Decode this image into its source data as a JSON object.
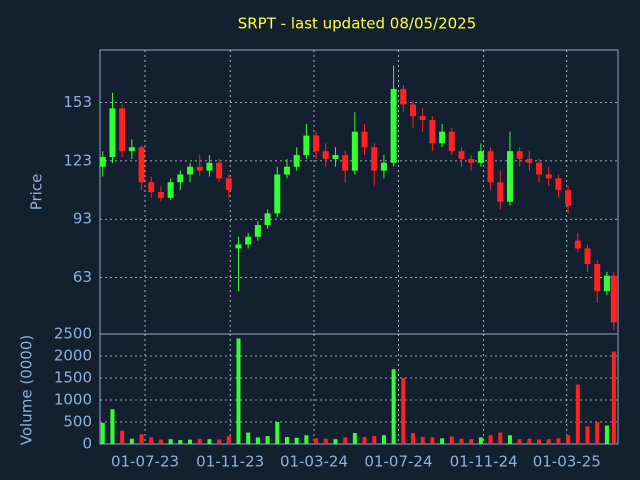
{
  "chart_data": {
    "type": "candlestick",
    "title": "SRPT - last updated 08/05/2025",
    "ylabel": "Price",
    "volume_label": "Volume (0000)",
    "up_color": "#33ff33",
    "down_color": "#ff2222",
    "grid": true,
    "xlim": [
      "2023-04-27",
      "2025-05-14"
    ],
    "xticks": [
      {
        "value": "2023-07-01",
        "label": "01-07-23"
      },
      {
        "value": "2023-11-01",
        "label": "01-11-23"
      },
      {
        "value": "2024-03-01",
        "label": "01-03-24"
      },
      {
        "value": "2024-07-01",
        "label": "01-07-24"
      },
      {
        "value": "2024-11-01",
        "label": "01-11-24"
      },
      {
        "value": "2025-03-01",
        "label": "01-03-25"
      }
    ],
    "ylim": [
      34,
      180
    ],
    "yticks": [
      63,
      93,
      123,
      153
    ],
    "volume_ylim": [
      0,
      2500
    ],
    "volume_yticks": [
      0,
      500,
      1000,
      1500,
      2000,
      2500
    ],
    "x": [
      "2023-05-01",
      "2023-05-15",
      "2023-05-29",
      "2023-06-12",
      "2023-06-26",
      "2023-07-10",
      "2023-07-24",
      "2023-08-07",
      "2023-08-21",
      "2023-09-04",
      "2023-09-18",
      "2023-10-02",
      "2023-10-16",
      "2023-10-30",
      "2023-11-13",
      "2023-11-27",
      "2023-12-11",
      "2023-12-25",
      "2024-01-08",
      "2024-01-22",
      "2024-02-05",
      "2024-02-19",
      "2024-03-04",
      "2024-03-18",
      "2024-04-01",
      "2024-04-15",
      "2024-04-29",
      "2024-05-13",
      "2024-05-27",
      "2024-06-10",
      "2024-06-24",
      "2024-07-08",
      "2024-07-22",
      "2024-08-05",
      "2024-08-19",
      "2024-09-02",
      "2024-09-16",
      "2024-09-30",
      "2024-10-14",
      "2024-10-28",
      "2024-11-11",
      "2024-11-25",
      "2024-12-09",
      "2024-12-23",
      "2025-01-06",
      "2025-01-20",
      "2025-02-03",
      "2025-02-17",
      "2025-03-03",
      "2025-03-17",
      "2025-03-31",
      "2025-04-14",
      "2025-04-28",
      "2025-05-08"
    ],
    "open": [
      120,
      125,
      150,
      128,
      130,
      112,
      107,
      104,
      112,
      116,
      120,
      118,
      122,
      114,
      78,
      80,
      84,
      90,
      96,
      116,
      120,
      126,
      136,
      128,
      124,
      126,
      118,
      138,
      130,
      118,
      122,
      160,
      152,
      146,
      144,
      132,
      138,
      128,
      124,
      122,
      128,
      112,
      102,
      128,
      124,
      122,
      116,
      114,
      108,
      82,
      78,
      70,
      56,
      64
    ],
    "high": [
      128,
      158,
      152,
      134,
      131,
      115,
      110,
      114,
      118,
      122,
      126,
      126,
      124,
      116,
      84,
      86,
      92,
      98,
      120,
      124,
      130,
      142,
      138,
      132,
      130,
      128,
      148,
      142,
      132,
      126,
      172,
      162,
      154,
      150,
      146,
      142,
      140,
      130,
      126,
      132,
      130,
      118,
      138,
      130,
      128,
      124,
      120,
      116,
      110,
      86,
      80,
      72,
      66,
      66
    ],
    "low": [
      115,
      122,
      125,
      124,
      108,
      104,
      102,
      103,
      108,
      112,
      115,
      115,
      112,
      104,
      56,
      78,
      82,
      88,
      94,
      114,
      118,
      124,
      124,
      120,
      120,
      112,
      116,
      126,
      110,
      114,
      120,
      148,
      140,
      138,
      128,
      130,
      126,
      120,
      118,
      120,
      108,
      98,
      100,
      120,
      118,
      112,
      110,
      104,
      96,
      76,
      66,
      50,
      54,
      36
    ],
    "close": [
      125,
      150,
      128,
      130,
      112,
      107,
      104,
      112,
      116,
      120,
      118,
      122,
      114,
      108,
      80,
      84,
      90,
      96,
      116,
      120,
      126,
      136,
      128,
      124,
      126,
      118,
      138,
      130,
      118,
      122,
      160,
      152,
      146,
      144,
      132,
      138,
      128,
      124,
      122,
      128,
      112,
      102,
      128,
      124,
      122,
      116,
      114,
      108,
      100,
      78,
      70,
      56,
      64,
      40
    ],
    "volume": [
      480,
      790,
      300,
      120,
      220,
      150,
      100,
      110,
      90,
      100,
      120,
      110,
      100,
      180,
      2400,
      260,
      150,
      180,
      500,
      160,
      140,
      200,
      130,
      120,
      110,
      150,
      250,
      160,
      180,
      200,
      1700,
      1500,
      250,
      160,
      150,
      130,
      170,
      120,
      110,
      150,
      200,
      260,
      200,
      110,
      120,
      100,
      110,
      130,
      200,
      1350,
      400,
      500,
      420,
      2100
    ]
  }
}
